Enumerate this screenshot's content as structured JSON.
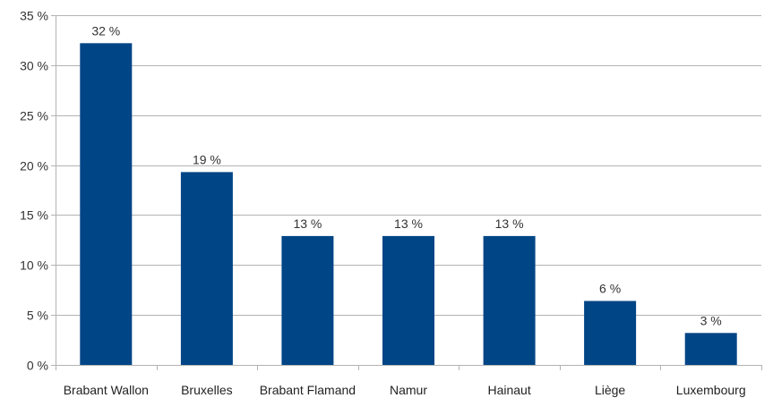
{
  "chart_data": {
    "type": "bar",
    "categories": [
      "Brabant Wallon",
      "Bruxelles",
      "Brabant Flamand",
      "Namur",
      "Hainaut",
      "Liège",
      "Luxembourg"
    ],
    "values": [
      32.2,
      19.3,
      12.9,
      12.9,
      12.9,
      6.4,
      3.2
    ],
    "data_labels": [
      "32 %",
      "19 %",
      "13 %",
      "13 %",
      "13 %",
      "6 %",
      "3 %"
    ],
    "y_ticks": [
      0,
      5,
      10,
      15,
      20,
      25,
      30,
      35
    ],
    "y_tick_labels": [
      "0 %",
      "5 %",
      "10 %",
      "15 %",
      "20 %",
      "25 %",
      "30 %",
      "35 %"
    ],
    "ylim": [
      0,
      35
    ],
    "grid": true,
    "legend": "none",
    "colors": {
      "bar": "#004586",
      "grid": "#b3b3b3"
    }
  }
}
